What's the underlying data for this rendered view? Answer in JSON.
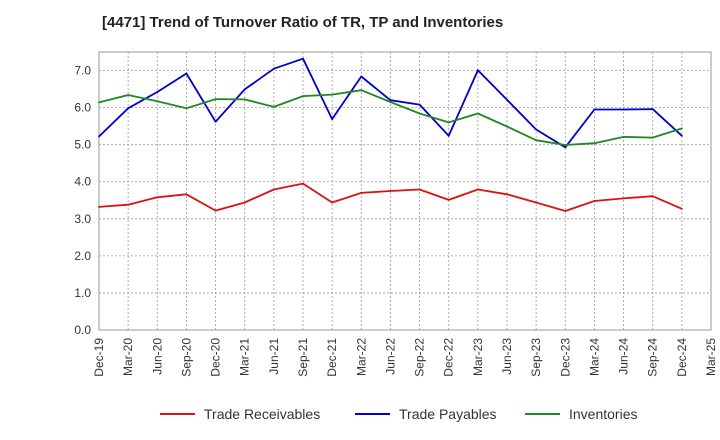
{
  "chart_data": {
    "type": "line",
    "title": "[4471]  Trend of Turnover Ratio of TR, TP and Inventories",
    "xlabel": "",
    "ylabel": "",
    "ylim": [
      0,
      7.5
    ],
    "y_ticks": [
      "0.0",
      "1.0",
      "2.0",
      "3.0",
      "4.0",
      "5.0",
      "6.0",
      "7.0"
    ],
    "x_ticks": [
      "Dec-19",
      "Mar-20",
      "Jun-20",
      "Sep-20",
      "Dec-20",
      "Mar-21",
      "Jun-21",
      "Sep-21",
      "Dec-21",
      "Mar-22",
      "Jun-22",
      "Sep-22",
      "Dec-22",
      "Mar-23",
      "Jun-23",
      "Sep-23",
      "Dec-23",
      "Mar-24",
      "Jun-24",
      "Sep-24",
      "Dec-24",
      "Mar-25"
    ],
    "x": [
      "Dec-19",
      "Mar-20",
      "Jun-20",
      "Sep-20",
      "Dec-20",
      "Mar-21",
      "Jun-21",
      "Sep-21",
      "Dec-21",
      "Mar-22",
      "Jun-22",
      "Sep-22",
      "Dec-22",
      "Mar-23",
      "Jun-23",
      "Sep-23",
      "Dec-23",
      "Mar-24",
      "Jun-24",
      "Sep-24",
      "Dec-24"
    ],
    "grid": true,
    "legend_position": "bottom",
    "series": [
      {
        "name": "Trade Receivables",
        "color": "#dd1111",
        "values": [
          3.32,
          3.38,
          3.58,
          3.66,
          3.22,
          3.44,
          3.79,
          3.95,
          3.44,
          3.7,
          3.75,
          3.79,
          3.51,
          3.79,
          3.66,
          3.44,
          3.21,
          3.48,
          3.55,
          3.61,
          3.27
        ]
      },
      {
        "name": "Trade Payables",
        "color": "#0000cc",
        "values": [
          5.22,
          5.98,
          6.42,
          6.92,
          5.62,
          6.49,
          7.05,
          7.32,
          5.69,
          6.84,
          6.2,
          6.08,
          5.24,
          7.01,
          6.21,
          5.41,
          4.93,
          5.95,
          5.95,
          5.96,
          5.24
        ]
      },
      {
        "name": "Inventories",
        "color": "#228822",
        "values": [
          6.14,
          6.34,
          6.17,
          5.98,
          6.23,
          6.22,
          6.02,
          6.31,
          6.35,
          6.47,
          6.15,
          5.84,
          5.6,
          5.84,
          5.49,
          5.12,
          4.99,
          5.04,
          5.21,
          5.19,
          5.44
        ]
      }
    ]
  }
}
